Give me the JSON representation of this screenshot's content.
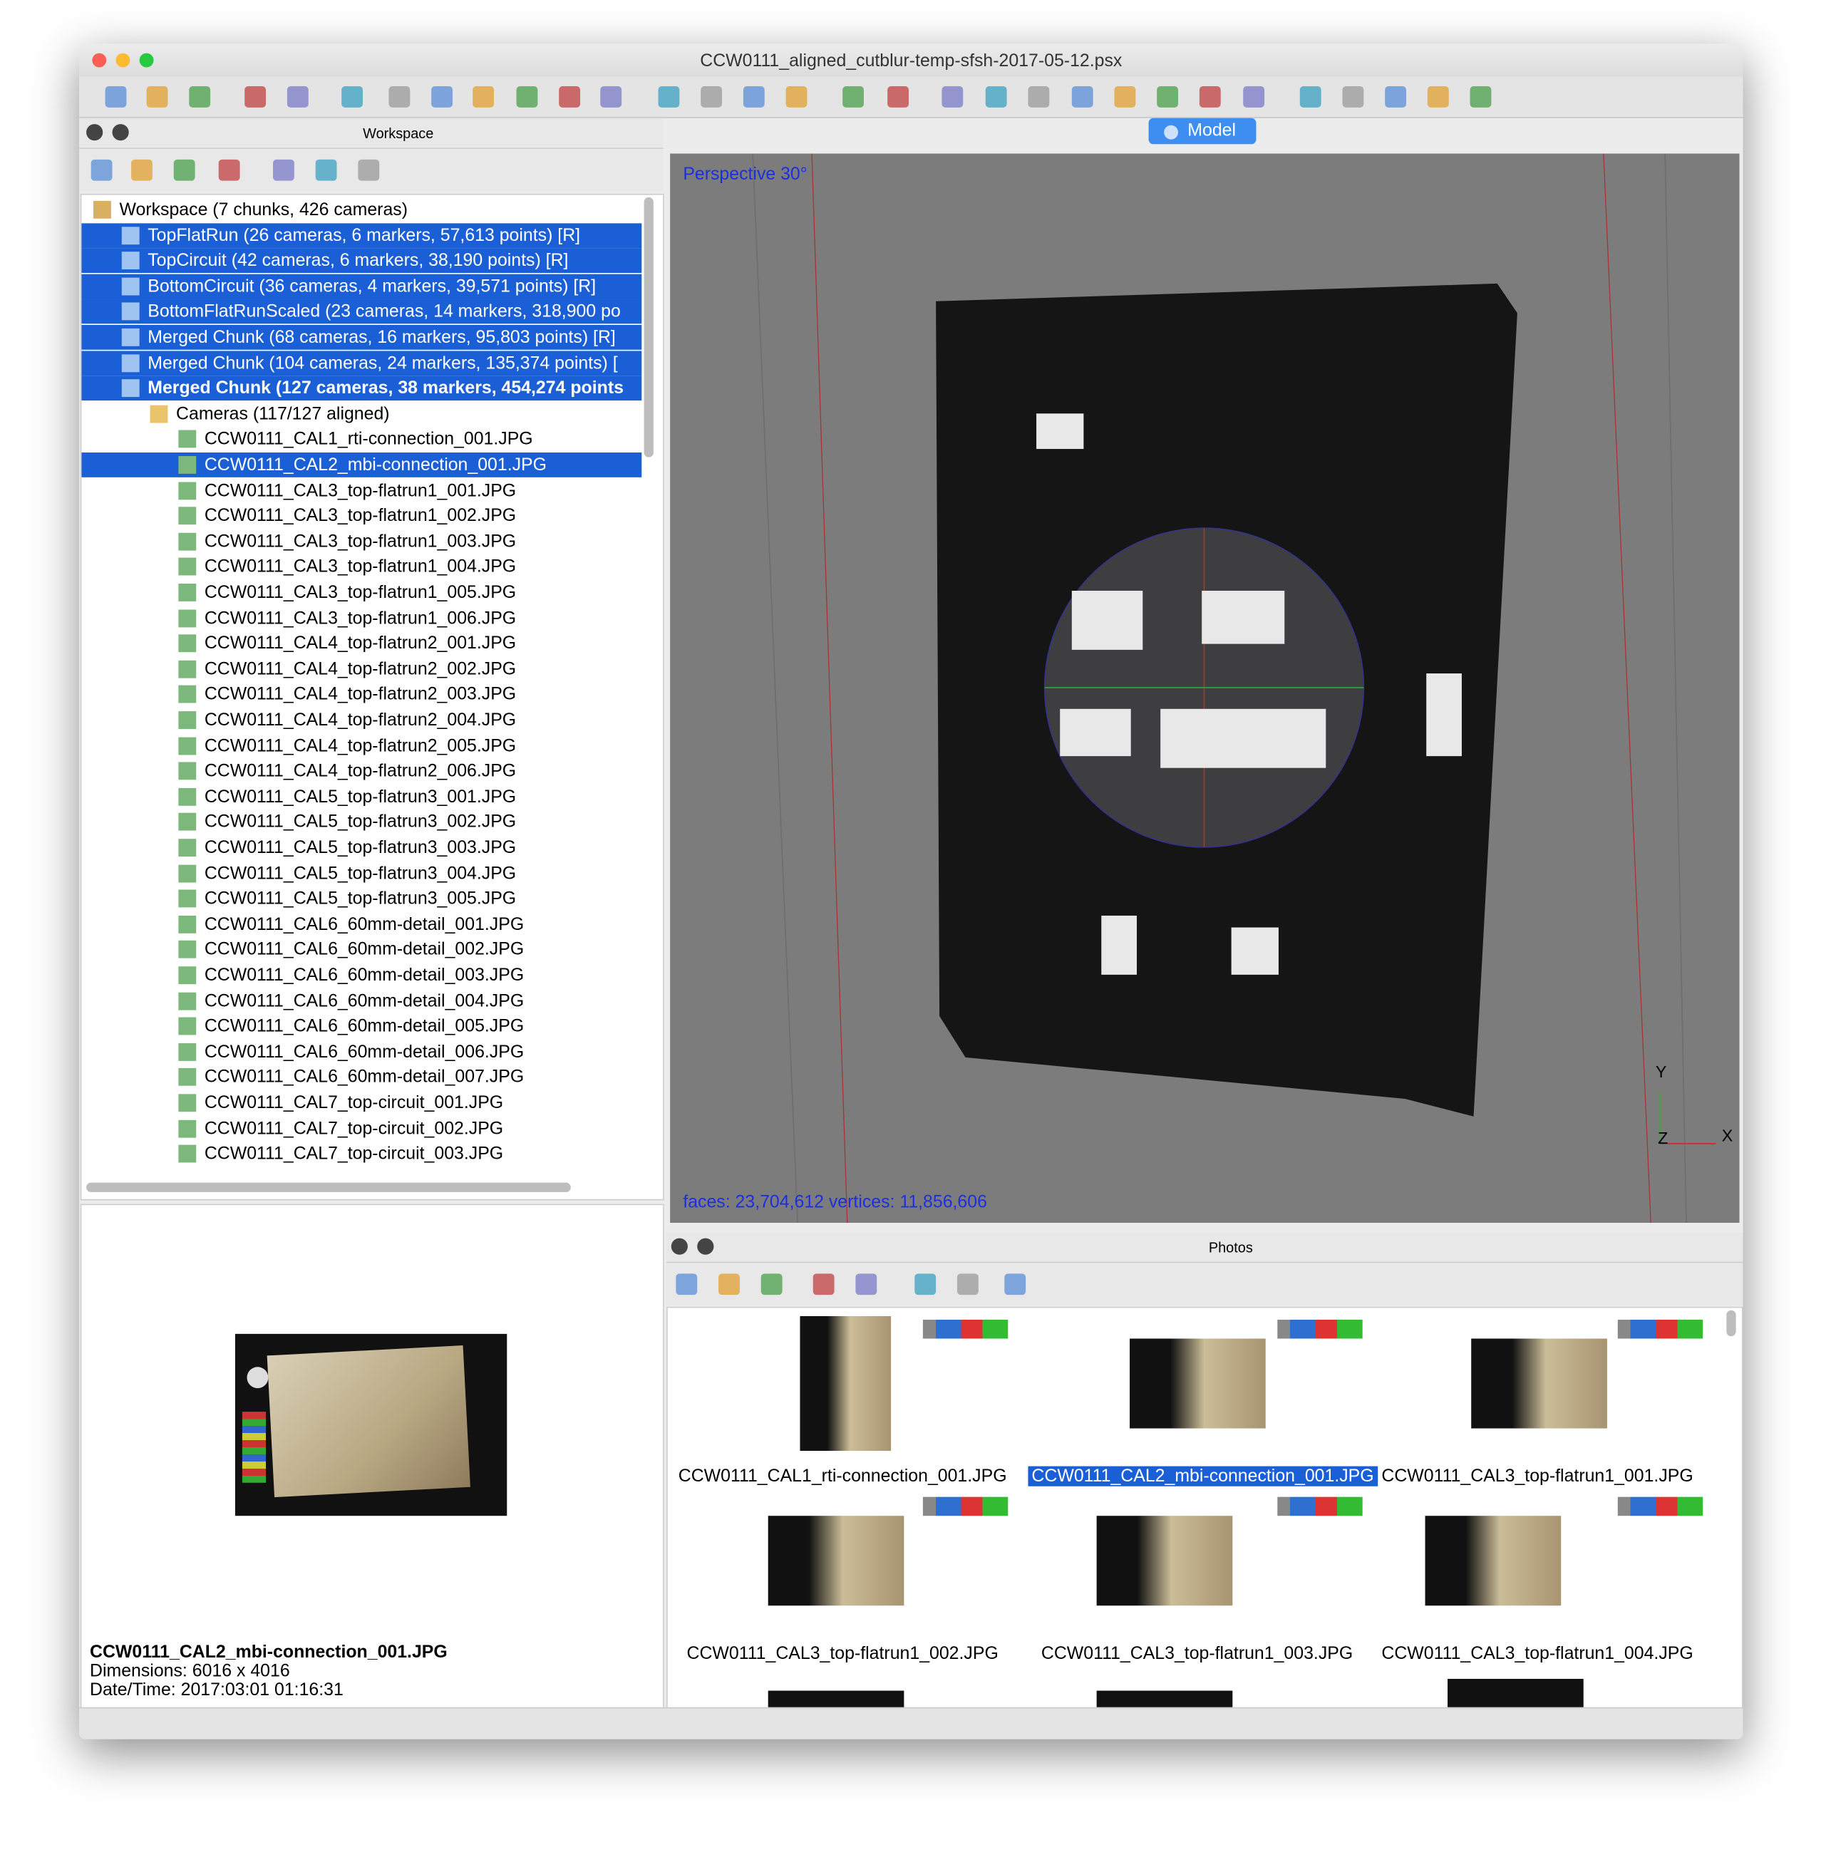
{
  "window": {
    "title": "CCW0111_aligned_cutblur-temp-sfsh-2017-05-12.psx"
  },
  "workspace": {
    "title": "Workspace",
    "root": "Workspace (7 chunks, 426 cameras)",
    "chunks": [
      "TopFlatRun (26 cameras, 6 markers, 57,613 points) [R]",
      "TopCircuit (42 cameras, 6 markers, 38,190 points) [R]",
      "BottomCircuit (36 cameras, 4 markers, 39,571 points) [R]",
      "BottomFlatRunScaled (23 cameras, 14 markers, 318,900 po",
      "Merged Chunk (68 cameras, 16 markers, 95,803 points) [R]",
      "Merged Chunk (104 cameras, 24 markers, 135,374 points) [",
      "Merged Chunk (127 cameras, 38 markers, 454,274 points"
    ],
    "cameras_folder": "Cameras (117/127 aligned)",
    "cameras": [
      "CCW0111_CAL1_rti-connection_001.JPG",
      "CCW0111_CAL2_mbi-connection_001.JPG",
      "CCW0111_CAL3_top-flatrun1_001.JPG",
      "CCW0111_CAL3_top-flatrun1_002.JPG",
      "CCW0111_CAL3_top-flatrun1_003.JPG",
      "CCW0111_CAL3_top-flatrun1_004.JPG",
      "CCW0111_CAL3_top-flatrun1_005.JPG",
      "CCW0111_CAL3_top-flatrun1_006.JPG",
      "CCW0111_CAL4_top-flatrun2_001.JPG",
      "CCW0111_CAL4_top-flatrun2_002.JPG",
      "CCW0111_CAL4_top-flatrun2_003.JPG",
      "CCW0111_CAL4_top-flatrun2_004.JPG",
      "CCW0111_CAL4_top-flatrun2_005.JPG",
      "CCW0111_CAL4_top-flatrun2_006.JPG",
      "CCW0111_CAL5_top-flatrun3_001.JPG",
      "CCW0111_CAL5_top-flatrun3_002.JPG",
      "CCW0111_CAL5_top-flatrun3_003.JPG",
      "CCW0111_CAL5_top-flatrun3_004.JPG",
      "CCW0111_CAL5_top-flatrun3_005.JPG",
      "CCW0111_CAL6_60mm-detail_001.JPG",
      "CCW0111_CAL6_60mm-detail_002.JPG",
      "CCW0111_CAL6_60mm-detail_003.JPG",
      "CCW0111_CAL6_60mm-detail_004.JPG",
      "CCW0111_CAL6_60mm-detail_005.JPG",
      "CCW0111_CAL6_60mm-detail_006.JPG",
      "CCW0111_CAL6_60mm-detail_007.JPG",
      "CCW0111_CAL7_top-circuit_001.JPG",
      "CCW0111_CAL7_top-circuit_002.JPG",
      "CCW0111_CAL7_top-circuit_003.JPG"
    ]
  },
  "model": {
    "tab": "Model",
    "projection": "Perspective 30°",
    "stats": "faces: 23,704,612 vertices: 11,856,606",
    "axis_y": "Y",
    "axis_x": "X",
    "axis_z": "Z"
  },
  "preview": {
    "filename": "CCW0111_CAL2_mbi-connection_001.JPG",
    "dimensions": "Dimensions: 6016 x 4016",
    "datetime": "Date/Time: 2017:03:01 01:16:31"
  },
  "photos": {
    "title": "Photos",
    "items": [
      "CCW0111_CAL1_rti-connection_001.JPG",
      "CCW0111_CAL2_mbi-connection_001.JPG",
      "CCW0111_CAL3_top-flatrun1_001.JPG",
      "CCW0111_CAL3_top-flatrun1_002.JPG",
      "CCW0111_CAL3_top-flatrun1_003.JPG",
      "CCW0111_CAL3_top-flatrun1_004.JPG"
    ]
  }
}
